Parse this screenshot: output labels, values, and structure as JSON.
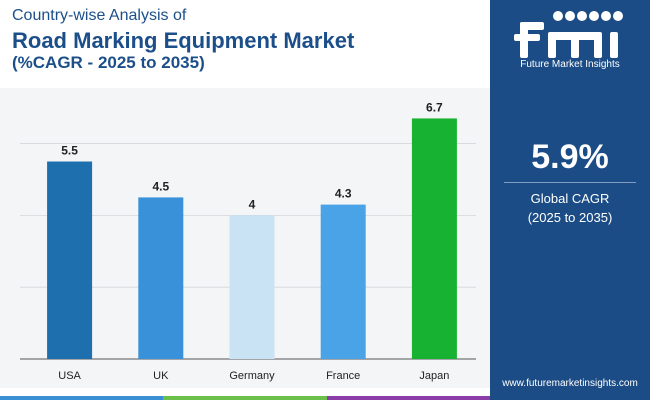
{
  "header": {
    "subtitle": "Country-wise Analysis of",
    "title": "Road Marking Equipment Market",
    "title_line2": "(%CAGR - 2025 to 2035)"
  },
  "chart_data": {
    "type": "bar",
    "categories": [
      "USA",
      "UK",
      "Germany",
      "France",
      "Japan"
    ],
    "values": [
      5.5,
      4.5,
      4,
      4.3,
      6.7
    ],
    "value_labels": [
      "5.5",
      "4.5",
      "4",
      "4.3",
      "6.7"
    ],
    "bar_colors": [
      "#1d6fae",
      "#3891d9",
      "#c9e2f4",
      "#4aa3e6",
      "#18b232"
    ],
    "ylim": [
      0,
      8
    ],
    "grid": true,
    "legend": "none"
  },
  "sidebar": {
    "logo_label": "fmi",
    "brand": "Future Market Insights",
    "kpi_value": "5.9%",
    "kpi_label_line1": "Global CAGR",
    "kpi_label_line2": "(2025 to 2035)",
    "website": "www.futuremarketinsights.com"
  },
  "colors": {
    "title": "#1c4f8a",
    "sidebar_bg": "#1b4c85",
    "plot_bg": "#f4f5f7",
    "footer_strip": [
      "#3a8fd4",
      "#6cc04a",
      "#8b3ea8"
    ]
  }
}
